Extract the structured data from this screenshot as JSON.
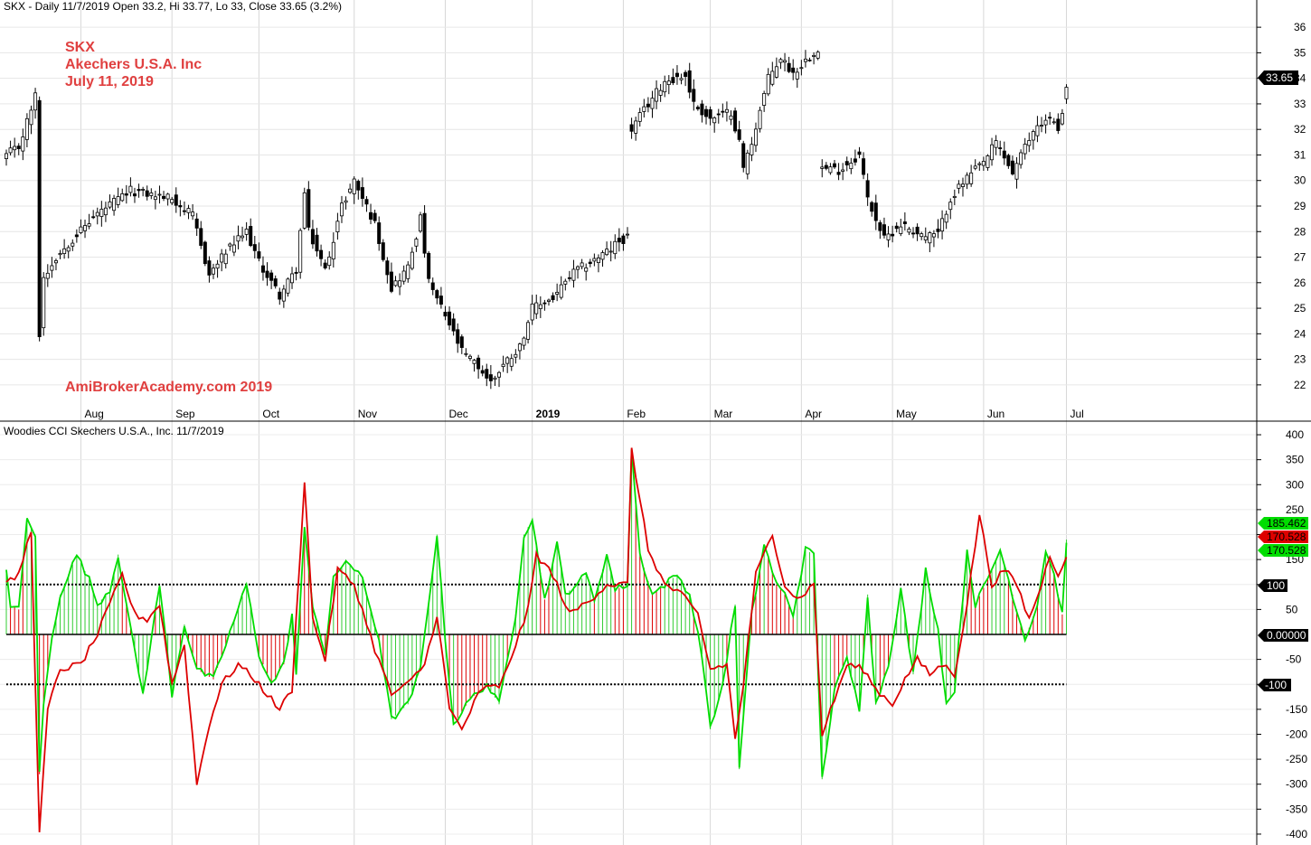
{
  "price_panel": {
    "header": "SKX - Daily 11/7/2019 Open 33.2, Hi 33.77, Lo 33, Close 33.65 (3.2%)",
    "annotations": [
      "SKX",
      "Akechers U.S.A. Inc",
      "July 11, 2019"
    ],
    "watermark": "AmiBrokerAcademy.com  2019",
    "last_price_label": "33.65"
  },
  "cci_panel": {
    "header": "Woodies CCI  Skechers U.S.A., Inc. 11/7/2019",
    "tags": [
      "185.462",
      "170.528",
      "170.528",
      "100",
      "0.00000",
      "-100"
    ]
  },
  "chart_data": [
    {
      "type": "candlestick",
      "ylim": [
        21.5,
        36.5
      ],
      "y_ticks": [
        22,
        23,
        24,
        25,
        26,
        27,
        28,
        29,
        30,
        31,
        32,
        33,
        34,
        35,
        36
      ],
      "x_labels": [
        "Aug",
        "Sep",
        "Oct",
        "Nov",
        "Dec",
        "2019",
        "Feb",
        "Mar",
        "Apr",
        "May",
        "Jun",
        "Jul"
      ],
      "anchors": [
        [
          0,
          31.0
        ],
        [
          3,
          31.3
        ],
        [
          5,
          32.3
        ],
        [
          7,
          33.3
        ],
        [
          8,
          24.0
        ],
        [
          9,
          26.2
        ],
        [
          12,
          27.0
        ],
        [
          17,
          27.9
        ],
        [
          22,
          28.7
        ],
        [
          30,
          29.6
        ],
        [
          40,
          29.3
        ],
        [
          45,
          28.6
        ],
        [
          49,
          26.3
        ],
        [
          53,
          27.2
        ],
        [
          58,
          28.0
        ],
        [
          61,
          26.8
        ],
        [
          66,
          25.5
        ],
        [
          70,
          26.5
        ],
        [
          72,
          29.5
        ],
        [
          73,
          28.0
        ],
        [
          77,
          26.5
        ],
        [
          81,
          29.0
        ],
        [
          84,
          30.0
        ],
        [
          89,
          28.3
        ],
        [
          93,
          25.8
        ],
        [
          97,
          26.6
        ],
        [
          100,
          28.5
        ],
        [
          102,
          26.0
        ],
        [
          106,
          24.7
        ],
        [
          110,
          23.3
        ],
        [
          114,
          22.7
        ],
        [
          117,
          22.1
        ],
        [
          120,
          22.8
        ],
        [
          124,
          23.5
        ],
        [
          127,
          25.0
        ],
        [
          132,
          25.4
        ],
        [
          137,
          26.4
        ],
        [
          141,
          26.8
        ],
        [
          146,
          27.3
        ],
        [
          147,
          27.5
        ],
        [
          150,
          27.8
        ],
        [
          151,
          32.0
        ],
        [
          155,
          33.0
        ],
        [
          159,
          33.9
        ],
        [
          164,
          34.1
        ],
        [
          166,
          33.0
        ],
        [
          170,
          32.4
        ],
        [
          175,
          32.7
        ],
        [
          177,
          31.5
        ],
        [
          178,
          30.5
        ],
        [
          180,
          31.5
        ],
        [
          184,
          34.0
        ],
        [
          187,
          34.8
        ],
        [
          190,
          34.2
        ],
        [
          196,
          35.2
        ],
        [
          197,
          30.5
        ],
        [
          201,
          30.4
        ],
        [
          206,
          31.0
        ],
        [
          208,
          29.3
        ],
        [
          210,
          28.5
        ],
        [
          212,
          27.7
        ],
        [
          216,
          28.3
        ],
        [
          222,
          27.8
        ],
        [
          225,
          27.9
        ],
        [
          228,
          29.3
        ],
        [
          232,
          30.1
        ],
        [
          236,
          30.7
        ],
        [
          239,
          31.5
        ],
        [
          243,
          30.3
        ],
        [
          246,
          31.3
        ],
        [
          249,
          32.2
        ],
        [
          252,
          32.4
        ],
        [
          254,
          32.0
        ],
        [
          256,
          33.6
        ]
      ],
      "gaps": [
        [
          150,
          151
        ],
        [
          196,
          197
        ]
      ],
      "last_bar": {
        "open": 33.2,
        "high": 33.77,
        "low": 33.0,
        "close": 33.65
      }
    },
    {
      "type": "line",
      "title": "Woodies CCI",
      "ylim": [
        -420,
        420
      ],
      "y_ticks": [
        400,
        350,
        300,
        250,
        200,
        150,
        100,
        50,
        -50,
        -100,
        -150,
        -200,
        -250,
        -300,
        -350,
        -400
      ],
      "reference_lines": [
        100,
        0,
        -100
      ],
      "series": [
        {
          "role": "cci-fast",
          "color": "#00dd00",
          "anchors": [
            [
              0,
              130
            ],
            [
              1,
              60
            ],
            [
              3,
              50
            ],
            [
              5,
              230
            ],
            [
              7,
              200
            ],
            [
              8,
              -280
            ],
            [
              9,
              -140
            ],
            [
              11,
              -10
            ],
            [
              13,
              80
            ],
            [
              17,
              160
            ],
            [
              20,
              110
            ],
            [
              22,
              60
            ],
            [
              25,
              90
            ],
            [
              27,
              160
            ],
            [
              30,
              10
            ],
            [
              33,
              -120
            ],
            [
              37,
              100
            ],
            [
              40,
              -120
            ],
            [
              43,
              20
            ],
            [
              46,
              -70
            ],
            [
              50,
              -90
            ],
            [
              53,
              -20
            ],
            [
              58,
              100
            ],
            [
              61,
              -40
            ],
            [
              64,
              -100
            ],
            [
              67,
              -60
            ],
            [
              69,
              40
            ],
            [
              70,
              -80
            ],
            [
              72,
              210
            ],
            [
              74,
              60
            ],
            [
              77,
              -40
            ],
            [
              79,
              110
            ],
            [
              82,
              150
            ],
            [
              86,
              110
            ],
            [
              90,
              -10
            ],
            [
              93,
              -170
            ],
            [
              97,
              -140
            ],
            [
              100,
              -70
            ],
            [
              104,
              200
            ],
            [
              106,
              -10
            ],
            [
              108,
              -180
            ],
            [
              112,
              -130
            ],
            [
              116,
              -100
            ],
            [
              119,
              -140
            ],
            [
              123,
              40
            ],
            [
              125,
              200
            ],
            [
              127,
              230
            ],
            [
              130,
              70
            ],
            [
              133,
              180
            ],
            [
              135,
              80
            ],
            [
              140,
              120
            ],
            [
              142,
              70
            ],
            [
              145,
              160
            ],
            [
              147,
              90
            ],
            [
              150,
              100
            ],
            [
              151,
              370
            ],
            [
              153,
              160
            ],
            [
              156,
              80
            ],
            [
              159,
              100
            ],
            [
              162,
              120
            ],
            [
              165,
              80
            ],
            [
              168,
              -40
            ],
            [
              170,
              -190
            ],
            [
              173,
              -100
            ],
            [
              176,
              60
            ],
            [
              177,
              -270
            ],
            [
              180,
              40
            ],
            [
              183,
              180
            ],
            [
              186,
              100
            ],
            [
              188,
              80
            ],
            [
              190,
              40
            ],
            [
              193,
              170
            ],
            [
              195,
              160
            ],
            [
              197,
              -290
            ],
            [
              200,
              -110
            ],
            [
              203,
              -50
            ],
            [
              206,
              -150
            ],
            [
              208,
              80
            ],
            [
              210,
              -140
            ],
            [
              213,
              -60
            ],
            [
              216,
              90
            ],
            [
              219,
              -80
            ],
            [
              222,
              130
            ],
            [
              225,
              10
            ],
            [
              227,
              -140
            ],
            [
              229,
              -110
            ],
            [
              232,
              170
            ],
            [
              234,
              60
            ],
            [
              237,
              110
            ],
            [
              240,
              170
            ],
            [
              243,
              80
            ],
            [
              246,
              -10
            ],
            [
              249,
              60
            ],
            [
              251,
              170
            ],
            [
              253,
              120
            ],
            [
              255,
              40
            ],
            [
              256,
              190
            ]
          ]
        },
        {
          "role": "cci-slow",
          "color": "#dd0000",
          "anchors": [
            [
              0,
              100
            ],
            [
              3,
              120
            ],
            [
              6,
              210
            ],
            [
              8,
              -400
            ],
            [
              10,
              -150
            ],
            [
              13,
              -70
            ],
            [
              18,
              -60
            ],
            [
              22,
              0
            ],
            [
              25,
              60
            ],
            [
              28,
              120
            ],
            [
              31,
              40
            ],
            [
              34,
              30
            ],
            [
              37,
              60
            ],
            [
              40,
              -100
            ],
            [
              43,
              -20
            ],
            [
              46,
              -300
            ],
            [
              49,
              -180
            ],
            [
              52,
              -100
            ],
            [
              56,
              -60
            ],
            [
              60,
              -90
            ],
            [
              63,
              -120
            ],
            [
              66,
              -150
            ],
            [
              69,
              -110
            ],
            [
              72,
              310
            ],
            [
              74,
              30
            ],
            [
              77,
              -50
            ],
            [
              80,
              130
            ],
            [
              84,
              100
            ],
            [
              89,
              -30
            ],
            [
              93,
              -120
            ],
            [
              97,
              -100
            ],
            [
              101,
              -60
            ],
            [
              104,
              40
            ],
            [
              107,
              -150
            ],
            [
              110,
              -190
            ],
            [
              114,
              -120
            ],
            [
              117,
              -100
            ],
            [
              119,
              -110
            ],
            [
              123,
              -20
            ],
            [
              126,
              50
            ],
            [
              128,
              160
            ],
            [
              131,
              130
            ],
            [
              133,
              100
            ],
            [
              136,
              40
            ],
            [
              141,
              70
            ],
            [
              145,
              100
            ],
            [
              150,
              100
            ],
            [
              151,
              370
            ],
            [
              155,
              170
            ],
            [
              159,
              100
            ],
            [
              163,
              80
            ],
            [
              167,
              40
            ],
            [
              170,
              -70
            ],
            [
              174,
              -60
            ],
            [
              176,
              -210
            ],
            [
              178,
              -100
            ],
            [
              181,
              120
            ],
            [
              185,
              200
            ],
            [
              188,
              100
            ],
            [
              191,
              70
            ],
            [
              195,
              100
            ],
            [
              197,
              -200
            ],
            [
              200,
              -130
            ],
            [
              203,
              -60
            ],
            [
              207,
              -70
            ],
            [
              210,
              -110
            ],
            [
              214,
              -140
            ],
            [
              217,
              -90
            ],
            [
              220,
              -50
            ],
            [
              223,
              -80
            ],
            [
              226,
              -60
            ],
            [
              229,
              -80
            ],
            [
              232,
              60
            ],
            [
              235,
              240
            ],
            [
              238,
              100
            ],
            [
              241,
              130
            ],
            [
              244,
              100
            ],
            [
              247,
              30
            ],
            [
              250,
              100
            ],
            [
              252,
              160
            ],
            [
              254,
              120
            ],
            [
              256,
              160
            ]
          ]
        }
      ]
    }
  ]
}
